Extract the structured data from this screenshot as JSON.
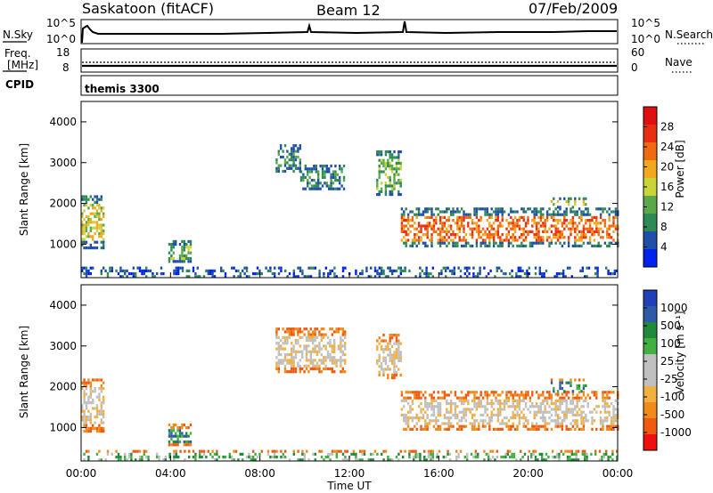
{
  "header": {
    "station": "Saskatoon (fitACF)",
    "beam": "Beam 12",
    "date": "07/Feb/2009"
  },
  "nsky_panel": {
    "left_label": "N.Sky",
    "left_ticks": [
      "10^5",
      "10^0"
    ],
    "right_label": "N.Search",
    "right_ticks": [
      "10^5",
      "10^0"
    ]
  },
  "freq_panel": {
    "left_label_1": "Freq.",
    "left_label_2": "[MHz]",
    "left_ticks": [
      "18",
      "8"
    ],
    "right_label": "Nave",
    "right_ticks": [
      "60",
      "0"
    ]
  },
  "cpid_panel": {
    "label": "CPID",
    "value": "themis 3300"
  },
  "colors": {
    "power_scale": [
      "#0022ee",
      "#1f4fa8",
      "#2e8a55",
      "#5aa84a",
      "#c8d43a",
      "#f2a81e",
      "#f06a12",
      "#e83010",
      "#e01010"
    ],
    "velocity_scale": [
      "#ee1010",
      "#f05a10",
      "#f08a18",
      "#f2b040",
      "#c0c0c0",
      "#c0c0c0",
      "#40b040",
      "#1f8a3a",
      "#2e5aa8",
      "#1f40b8"
    ]
  },
  "chart_data": [
    {
      "type": "heatmap",
      "panel": "power",
      "ylabel": "Slant Range [km]",
      "xlabel": "",
      "xlim_hours": [
        0,
        24
      ],
      "ylim_km": [
        180,
        4500
      ],
      "y_ticks": [
        "1000",
        "2000",
        "3000",
        "4000"
      ],
      "colorbar": {
        "label": "Power [dB]",
        "ticks": [
          "4",
          "8",
          "12",
          "16",
          "20",
          "24",
          "28"
        ]
      },
      "bands": [
        {
          "t0": 0.0,
          "t1": 1.0,
          "r0": 900,
          "r1": 2200,
          "level": 4
        },
        {
          "t0": 3.9,
          "t1": 4.9,
          "r0": 600,
          "r1": 1100,
          "level": 3
        },
        {
          "t0": 8.7,
          "t1": 9.8,
          "r0": 2800,
          "r1": 3450,
          "level": 2
        },
        {
          "t0": 9.8,
          "t1": 11.8,
          "r0": 2350,
          "r1": 2950,
          "level": 2
        },
        {
          "t0": 13.2,
          "t1": 14.3,
          "r0": 2200,
          "r1": 3300,
          "level": 3
        },
        {
          "t0": 14.3,
          "t1": 24.0,
          "r0": 950,
          "r1": 1900,
          "level": 6
        },
        {
          "t0": 21.0,
          "t1": 22.6,
          "r0": 1900,
          "r1": 2150,
          "level": 4
        },
        {
          "t0": 0.0,
          "t1": 24.0,
          "r0": 180,
          "r1": 450,
          "level": 1
        }
      ]
    },
    {
      "type": "heatmap",
      "panel": "velocity",
      "ylabel": "Slant Range [km]",
      "xlabel": "Time UT",
      "xlim_hours": [
        0,
        24
      ],
      "ylim_km": [
        180,
        4500
      ],
      "x_ticks": [
        "00:00",
        "04:00",
        "08:00",
        "12:00",
        "16:00",
        "20:00",
        "00:00"
      ],
      "y_ticks": [
        "1000",
        "2000",
        "3000",
        "4000"
      ],
      "colorbar": {
        "label": "Velocity [m s⁻¹]",
        "ticks": [
          "1000",
          "500",
          "100",
          "25",
          "-25",
          "-100",
          "-500",
          "-1000"
        ]
      },
      "bands": [
        {
          "t0": 0.0,
          "t1": 1.0,
          "r0": 900,
          "r1": 2200,
          "level": 4
        },
        {
          "t0": 3.9,
          "t1": 4.9,
          "r0": 600,
          "r1": 1100,
          "level": 7
        },
        {
          "t0": 8.7,
          "t1": 11.8,
          "r0": 2350,
          "r1": 3450,
          "level": 4
        },
        {
          "t0": 13.2,
          "t1": 14.3,
          "r0": 2200,
          "r1": 3300,
          "level": 4
        },
        {
          "t0": 14.3,
          "t1": 24.0,
          "r0": 950,
          "r1": 1900,
          "level": 4
        },
        {
          "t0": 21.0,
          "t1": 22.6,
          "r0": 1850,
          "r1": 2200,
          "level": 7
        },
        {
          "t0": 0.0,
          "t1": 24.0,
          "r0": 180,
          "r1": 450,
          "level": 6
        }
      ]
    }
  ]
}
